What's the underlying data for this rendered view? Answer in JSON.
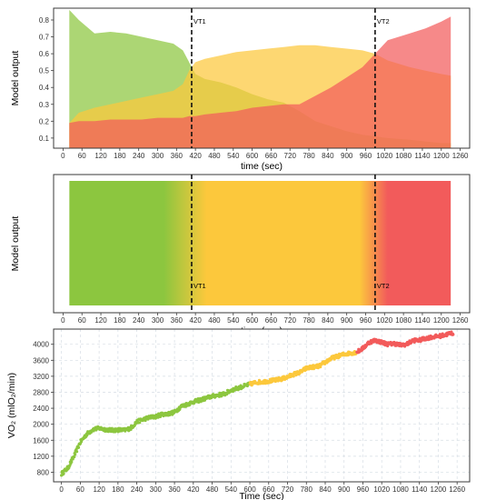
{
  "colors": {
    "green": "#8cc63f",
    "yellow": "#fcc83c",
    "red": "#f25b5b",
    "frame": "#3a3a3a",
    "grid": "#e3e3e3"
  },
  "chart_data": [
    {
      "id": "top",
      "type": "area",
      "xlabel": "time (sec)",
      "ylabel": "Model output",
      "xlim": [
        -30,
        1290
      ],
      "ylim": [
        0.04,
        0.87
      ],
      "xticks": [
        0,
        60,
        120,
        180,
        240,
        300,
        360,
        420,
        480,
        540,
        600,
        660,
        720,
        780,
        840,
        900,
        960,
        1020,
        1080,
        1140,
        1200,
        1260
      ],
      "yticks": [
        0.1,
        0.2,
        0.3,
        0.4,
        0.5,
        0.6,
        0.7,
        0.8
      ],
      "annotations": [
        {
          "label": "VT1",
          "x": 408
        },
        {
          "label": "VT2",
          "x": 990
        }
      ],
      "series": [
        {
          "color": "green",
          "x": [
            20,
            50,
            100,
            150,
            200,
            250,
            300,
            350,
            380,
            400,
            420,
            450,
            500,
            550,
            600,
            650,
            700,
            750,
            800,
            850,
            900,
            950,
            990,
            1030,
            1100,
            1150,
            1200,
            1230
          ],
          "values": [
            0.86,
            0.8,
            0.72,
            0.73,
            0.72,
            0.7,
            0.68,
            0.66,
            0.62,
            0.55,
            0.48,
            0.45,
            0.43,
            0.4,
            0.36,
            0.33,
            0.31,
            0.26,
            0.2,
            0.17,
            0.14,
            0.12,
            0.11,
            0.1,
            0.09,
            0.08,
            0.07,
            0.07
          ]
        },
        {
          "color": "yellow",
          "x": [
            20,
            50,
            100,
            150,
            200,
            250,
            300,
            350,
            380,
            400,
            420,
            450,
            500,
            550,
            600,
            650,
            700,
            750,
            800,
            850,
            900,
            950,
            990,
            1030,
            1100,
            1150,
            1200,
            1230
          ],
          "values": [
            0.19,
            0.25,
            0.28,
            0.3,
            0.32,
            0.34,
            0.36,
            0.38,
            0.42,
            0.5,
            0.55,
            0.57,
            0.59,
            0.61,
            0.62,
            0.63,
            0.64,
            0.65,
            0.65,
            0.64,
            0.63,
            0.62,
            0.6,
            0.56,
            0.52,
            0.5,
            0.48,
            0.47
          ]
        },
        {
          "color": "red",
          "x": [
            20,
            50,
            100,
            150,
            200,
            250,
            300,
            350,
            380,
            400,
            420,
            450,
            500,
            550,
            600,
            650,
            700,
            750,
            800,
            850,
            900,
            950,
            990,
            1030,
            1100,
            1150,
            1200,
            1230
          ],
          "values": [
            0.19,
            0.2,
            0.2,
            0.21,
            0.21,
            0.21,
            0.22,
            0.22,
            0.22,
            0.23,
            0.23,
            0.24,
            0.25,
            0.26,
            0.28,
            0.29,
            0.3,
            0.3,
            0.35,
            0.4,
            0.46,
            0.52,
            0.6,
            0.68,
            0.72,
            0.75,
            0.79,
            0.82
          ]
        }
      ]
    },
    {
      "id": "middle",
      "type": "heatmap",
      "xlabel": "time (sec)",
      "ylabel": "Model output",
      "xlim": [
        -30,
        1290
      ],
      "xticks": [
        0,
        60,
        120,
        180,
        240,
        300,
        360,
        420,
        480,
        540,
        600,
        660,
        720,
        780,
        840,
        900,
        960,
        1020,
        1080,
        1140,
        1200,
        1260
      ],
      "x_range": [
        20,
        1230
      ],
      "color_stops": [
        {
          "x": 20,
          "color": "green"
        },
        {
          "x": 320,
          "color": "green"
        },
        {
          "x": 455,
          "color": "yellow"
        },
        {
          "x": 940,
          "color": "yellow"
        },
        {
          "x": 1030,
          "color": "red"
        },
        {
          "x": 1230,
          "color": "red"
        }
      ],
      "annotations": [
        {
          "label": "VT1",
          "x": 408
        },
        {
          "label": "VT2",
          "x": 990
        }
      ]
    },
    {
      "id": "bottom",
      "type": "scatter",
      "xlabel": "Time (sec)",
      "ylabel": "VO₂ (mlO₂/min)",
      "xlim": [
        -25,
        1300
      ],
      "ylim": [
        560,
        4380
      ],
      "xticks": [
        0,
        60,
        120,
        180,
        240,
        300,
        360,
        420,
        480,
        540,
        600,
        660,
        720,
        780,
        840,
        900,
        960,
        1020,
        1080,
        1140,
        1200,
        1260
      ],
      "yticks": [
        800,
        1200,
        1600,
        2000,
        2400,
        2800,
        3200,
        3600,
        4000
      ],
      "trend": {
        "x": [
          0,
          20,
          40,
          60,
          80,
          100,
          120,
          140,
          160,
          180,
          200,
          220,
          240,
          260,
          280,
          300,
          320,
          340,
          360,
          380,
          400,
          420,
          440,
          460,
          480,
          500,
          520,
          540,
          560,
          580,
          600,
          620,
          640,
          660,
          680,
          700,
          720,
          740,
          760,
          780,
          800,
          820,
          840,
          860,
          880,
          900,
          920,
          940,
          960,
          980,
          1000,
          1020,
          1040,
          1060,
          1080,
          1100,
          1120,
          1140,
          1160,
          1180,
          1200,
          1220,
          1240
        ],
        "values": [
          760,
          900,
          1200,
          1550,
          1750,
          1870,
          1900,
          1870,
          1850,
          1860,
          1850,
          1900,
          2060,
          2120,
          2170,
          2190,
          2250,
          2260,
          2300,
          2440,
          2500,
          2560,
          2600,
          2650,
          2700,
          2730,
          2760,
          2850,
          2900,
          2950,
          3000,
          3050,
          3060,
          3080,
          3100,
          3130,
          3180,
          3250,
          3300,
          3400,
          3430,
          3450,
          3550,
          3650,
          3700,
          3750,
          3780,
          3800,
          3900,
          4050,
          4100,
          4050,
          4000,
          4020,
          3980,
          4000,
          4100,
          4100,
          4150,
          4180,
          4200,
          4230,
          4280
        ]
      },
      "color_segments": [
        {
          "from": 0,
          "to": 600,
          "color": "green"
        },
        {
          "from": 600,
          "to": 940,
          "color": "yellow"
        },
        {
          "from": 940,
          "to": 1250,
          "color": "red"
        }
      ]
    }
  ]
}
